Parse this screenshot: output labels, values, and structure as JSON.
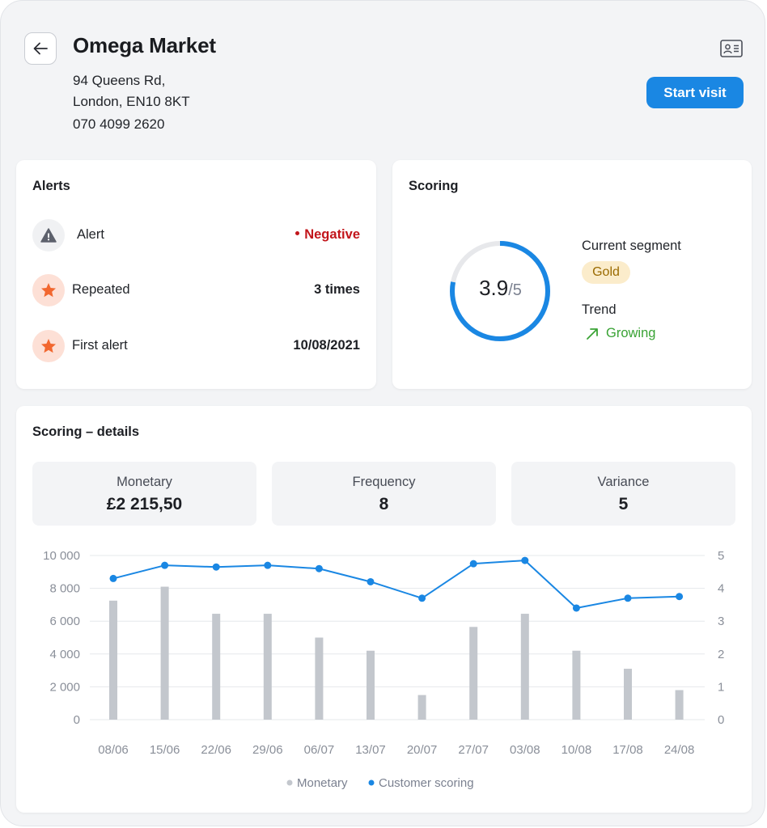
{
  "header": {
    "title": "Omega Market",
    "address_line1": "94 Queens Rd,",
    "address_line2": "London, EN10 8KT",
    "phone": "070 4099 2620",
    "start_button": "Start visit",
    "icons": {
      "back": "arrow-left-icon",
      "contact": "id-card-icon"
    }
  },
  "alerts": {
    "title": "Alerts",
    "rows": [
      {
        "label": "Alert",
        "value": "Negative",
        "icon": "warning-triangle-icon",
        "icon_bg": "#f0f1f3",
        "value_color": "#c2151b"
      },
      {
        "label": "Repeated",
        "value": "3 times",
        "icon": "star-icon",
        "icon_bg": "#fde0d6"
      },
      {
        "label": "First alert",
        "value": "10/08/2021",
        "icon": "star-icon",
        "icon_bg": "#fde0d6"
      }
    ]
  },
  "scoring": {
    "title": "Scoring",
    "score": "3.9",
    "max": "/5",
    "score_fraction": 0.78,
    "segment_label": "Current segment",
    "segment": "Gold",
    "trend_label": "Trend",
    "trend": "Growing",
    "trend_icon": "arrow-up-right-icon"
  },
  "details": {
    "title": "Scoring – details",
    "metrics": [
      {
        "label": "Monetary",
        "value": "£2 215,50"
      },
      {
        "label": "Frequency",
        "value": "8"
      },
      {
        "label": "Variance",
        "value": "5"
      }
    ]
  },
  "chart_data": {
    "type": "bar",
    "categories": [
      "08/06",
      "15/06",
      "22/06",
      "29/06",
      "06/07",
      "13/07",
      "20/07",
      "27/07",
      "03/08",
      "10/08",
      "17/08",
      "24/08"
    ],
    "series": [
      {
        "name": "Monetary",
        "type": "bar",
        "axis": "left",
        "values": [
          7250,
          8100,
          6450,
          6450,
          5000,
          4200,
          1500,
          5650,
          6450,
          4200,
          3100,
          1800
        ]
      },
      {
        "name": "Customer scoring",
        "type": "line",
        "axis": "right",
        "values": [
          4.3,
          4.7,
          4.65,
          4.7,
          4.6,
          4.2,
          3.7,
          4.75,
          4.85,
          3.4,
          3.7,
          3.75
        ]
      }
    ],
    "y_left": {
      "ticks": [
        "10 000",
        "8 000",
        "6 000",
        "4 000",
        "2 000",
        "0"
      ],
      "range": [
        0,
        10000
      ]
    },
    "y_right": {
      "ticks": [
        "5",
        "4",
        "3",
        "2",
        "1",
        "0"
      ],
      "range": [
        0,
        5
      ]
    },
    "grid": true,
    "legend_position": "bottom",
    "colors": {
      "bar": "#c3c7cd",
      "line": "#1a87e3"
    }
  }
}
